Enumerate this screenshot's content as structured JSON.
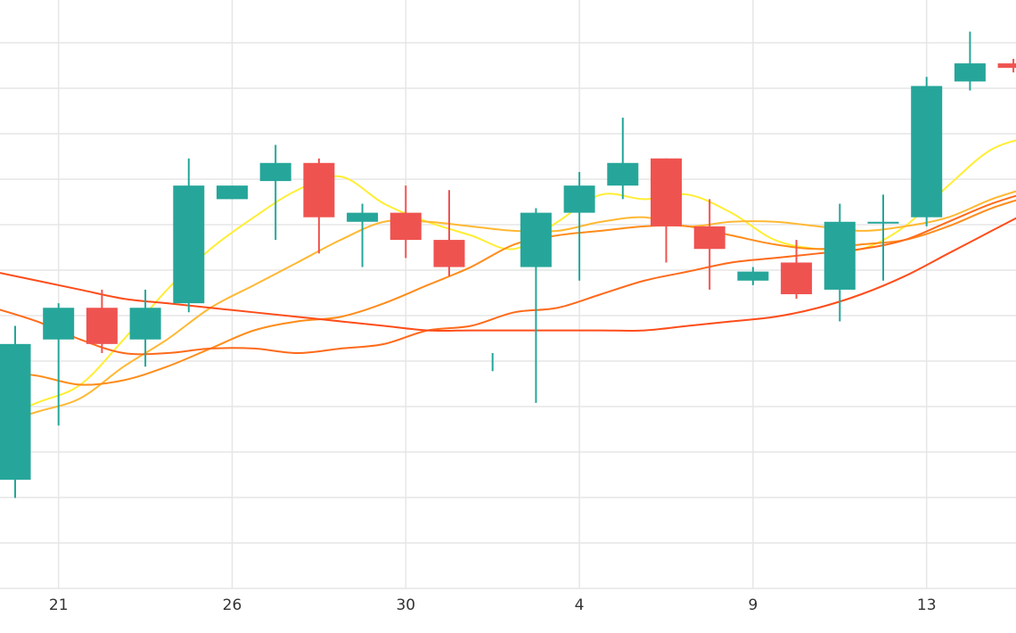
{
  "chart_data": {
    "type": "candlestick",
    "x_tick_labels": [
      "21",
      "26",
      "30",
      "4",
      "9",
      "13"
    ],
    "y_range": [
      60,
      125
    ],
    "grid": true,
    "candles": [
      {
        "x": 0,
        "open": 72,
        "high": 89,
        "low": 70,
        "close": 87
      },
      {
        "x": 1,
        "open": 87.5,
        "high": 91.5,
        "low": 78,
        "close": 91
      },
      {
        "x": 2,
        "open": 91,
        "high": 93,
        "low": 86,
        "close": 87
      },
      {
        "x": 3,
        "open": 87.5,
        "high": 93,
        "low": 84.5,
        "close": 91
      },
      {
        "x": 4,
        "open": 91.5,
        "high": 107.5,
        "low": 90.5,
        "close": 104.5
      },
      {
        "x": 5,
        "open": 103,
        "high": 104.5,
        "low": 103,
        "close": 104.5
      },
      {
        "x": 6,
        "open": 105,
        "high": 109,
        "low": 98.5,
        "close": 107
      },
      {
        "x": 7,
        "open": 107,
        "high": 107.5,
        "low": 97,
        "close": 101
      },
      {
        "x": 8,
        "open": 100.5,
        "high": 102.5,
        "low": 95.5,
        "close": 101.5
      },
      {
        "x": 9,
        "open": 101.5,
        "high": 104.5,
        "low": 96.5,
        "close": 98.5
      },
      {
        "x": 10,
        "open": 98.5,
        "high": 104,
        "low": 94.5,
        "close": 95.5
      },
      {
        "x": 11,
        "open": 86,
        "high": 86,
        "low": 84,
        "close": 86
      },
      {
        "x": 12,
        "open": 95.5,
        "high": 102,
        "low": 80.5,
        "close": 101.5
      },
      {
        "x": 13,
        "open": 101.5,
        "high": 106,
        "low": 94,
        "close": 104.5
      },
      {
        "x": 14,
        "open": 104.5,
        "high": 112,
        "low": 103,
        "close": 107
      },
      {
        "x": 15,
        "open": 107.5,
        "high": 107.5,
        "low": 96,
        "close": 100
      },
      {
        "x": 16,
        "open": 100,
        "high": 103,
        "low": 93,
        "close": 97.5
      },
      {
        "x": 17,
        "open": 94,
        "high": 95.5,
        "low": 93.5,
        "close": 95
      },
      {
        "x": 18,
        "open": 96,
        "high": 98.5,
        "low": 92,
        "close": 92.5
      },
      {
        "x": 19,
        "open": 93,
        "high": 102.5,
        "low": 89.5,
        "close": 100.5
      },
      {
        "x": 20,
        "open": 100.5,
        "high": 103.5,
        "low": 94,
        "close": 100.5
      },
      {
        "x": 21,
        "open": 101,
        "high": 116.5,
        "low": 100,
        "close": 115.5
      },
      {
        "x": 22,
        "open": 116,
        "high": 121.5,
        "low": 115,
        "close": 118
      },
      {
        "x": 23,
        "open": 118,
        "high": 118.5,
        "low": 117,
        "close": 117.5
      }
    ],
    "moving_averages": [
      {
        "color": "#ffee33",
        "values": [
          [
            -0.5,
            78.5
          ],
          [
            0.5,
            80.5
          ],
          [
            1.5,
            82.5
          ],
          [
            2.5,
            87.5
          ],
          [
            3.5,
            93
          ],
          [
            4.5,
            97.5
          ],
          [
            5.5,
            101
          ],
          [
            6.5,
            104
          ],
          [
            7.5,
            105.5
          ],
          [
            8.5,
            102.5
          ],
          [
            9.5,
            100.5
          ],
          [
            10.5,
            99
          ],
          [
            11.5,
            97.5
          ],
          [
            12.5,
            100.5
          ],
          [
            13.5,
            103.5
          ],
          [
            14.5,
            103
          ],
          [
            15.5,
            103.5
          ],
          [
            16.5,
            101.5
          ],
          [
            17.5,
            98.5
          ],
          [
            18.5,
            97.5
          ],
          [
            19.5,
            97.5
          ],
          [
            20.5,
            100
          ],
          [
            21.5,
            104.5
          ],
          [
            22.5,
            108.5
          ],
          [
            23.5,
            110
          ]
        ]
      },
      {
        "color": "#ffb833",
        "values": [
          [
            -0.5,
            78
          ],
          [
            0.5,
            79.5
          ],
          [
            1.5,
            81
          ],
          [
            2.5,
            84.5
          ],
          [
            3.5,
            87.5
          ],
          [
            4.5,
            91
          ],
          [
            5.5,
            93.5
          ],
          [
            6.5,
            96
          ],
          [
            7.5,
            98.5
          ],
          [
            8.5,
            100.5
          ],
          [
            9.5,
            100.5
          ],
          [
            10.5,
            100
          ],
          [
            11.5,
            99.5
          ],
          [
            12.5,
            99.5
          ],
          [
            13.5,
            100.5
          ],
          [
            14.5,
            101
          ],
          [
            15.5,
            100
          ],
          [
            16.5,
            100.5
          ],
          [
            17.5,
            100.5
          ],
          [
            18.5,
            100
          ],
          [
            19.5,
            99.5
          ],
          [
            20.5,
            100
          ],
          [
            21.5,
            101
          ],
          [
            22.5,
            103
          ],
          [
            23.5,
            104.5
          ]
        ]
      },
      {
        "color": "#ff8c1a",
        "values": [
          [
            -0.5,
            84
          ],
          [
            0.5,
            83.5
          ],
          [
            1.5,
            82.5
          ],
          [
            2.5,
            83
          ],
          [
            3.5,
            84.5
          ],
          [
            4.5,
            86.5
          ],
          [
            5.5,
            88.5
          ],
          [
            6.5,
            89.5
          ],
          [
            7.5,
            90
          ],
          [
            8.5,
            91.5
          ],
          [
            9.5,
            93.5
          ],
          [
            10.5,
            95.5
          ],
          [
            11.5,
            98
          ],
          [
            12.5,
            99
          ],
          [
            13.5,
            99.5
          ],
          [
            14.5,
            100
          ],
          [
            15.5,
            100
          ],
          [
            16.5,
            99
          ],
          [
            17.5,
            98
          ],
          [
            18.5,
            97.5
          ],
          [
            19.5,
            98
          ],
          [
            20.5,
            98.5
          ],
          [
            21.5,
            100
          ],
          [
            22.5,
            102
          ],
          [
            23.5,
            103.5
          ]
        ]
      },
      {
        "color": "#ff6a1a",
        "values": [
          [
            -0.5,
            91
          ],
          [
            0.5,
            89.5
          ],
          [
            1.5,
            87.5
          ],
          [
            2.5,
            86
          ],
          [
            3.5,
            86
          ],
          [
            4.5,
            86.5
          ],
          [
            5.5,
            86.5
          ],
          [
            6.5,
            86
          ],
          [
            7.5,
            86.5
          ],
          [
            8.5,
            87
          ],
          [
            9.5,
            88.5
          ],
          [
            10.5,
            89
          ],
          [
            11.5,
            90.5
          ],
          [
            12.5,
            91
          ],
          [
            13.5,
            92.5
          ],
          [
            14.5,
            94
          ],
          [
            15.5,
            95
          ],
          [
            16.5,
            96
          ],
          [
            17.5,
            96.5
          ],
          [
            18.5,
            97
          ],
          [
            19.5,
            97.5
          ],
          [
            20.5,
            98.5
          ],
          [
            21.5,
            100.5
          ],
          [
            22.5,
            102.5
          ],
          [
            23.5,
            104
          ]
        ]
      },
      {
        "color": "#ff4d1a",
        "values": [
          [
            -0.5,
            95
          ],
          [
            0.5,
            94
          ],
          [
            1.5,
            93
          ],
          [
            2.5,
            92
          ],
          [
            3.5,
            91.5
          ],
          [
            4.5,
            91
          ],
          [
            5.5,
            90.5
          ],
          [
            6.5,
            90
          ],
          [
            7.5,
            89.5
          ],
          [
            8.5,
            89
          ],
          [
            9.5,
            88.5
          ],
          [
            10.5,
            88.5
          ],
          [
            11.5,
            88.5
          ],
          [
            12.5,
            88.5
          ],
          [
            13.5,
            88.5
          ],
          [
            14.5,
            88.5
          ],
          [
            15.5,
            89
          ],
          [
            16.5,
            89.5
          ],
          [
            17.5,
            90
          ],
          [
            18.5,
            91
          ],
          [
            19.5,
            92.5
          ],
          [
            20.5,
            94.5
          ],
          [
            21.5,
            97
          ],
          [
            22.5,
            99.5
          ],
          [
            23.5,
            102
          ]
        ]
      }
    ],
    "colors": {
      "up": "#26a69a",
      "down": "#ef5350",
      "grid": "#e6e6e6",
      "text": "#333333"
    }
  }
}
